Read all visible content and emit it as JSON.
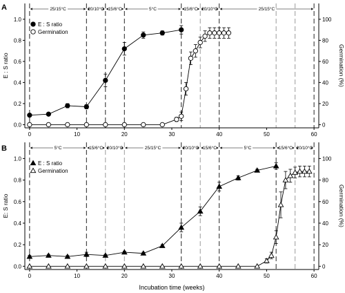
{
  "figure": {
    "xlabel": "Incubation time (weeks)",
    "colors": {
      "axis": "#000000",
      "marker_open": "#ffffff",
      "marker_filled": "#000000",
      "dashed": "#888888"
    }
  },
  "chart_data": [
    {
      "panel": "A",
      "type": "line",
      "xlim": [
        -1,
        61
      ],
      "ylim_left": [
        -0.03,
        1.15
      ],
      "ylim_right": [
        -3,
        115
      ],
      "ylabel_left": "E : S ratio",
      "ylabel_right": "Germination (%)",
      "xticks": [
        0,
        10,
        20,
        30,
        40,
        50,
        60
      ],
      "yticks_left": [
        0.0,
        0.2,
        0.4,
        0.6,
        0.8,
        1.0
      ],
      "yticks_right": [
        0,
        20,
        40,
        60,
        80,
        100
      ],
      "vlines_dashed_dark": [
        0,
        12,
        16,
        20,
        32,
        40,
        60
      ],
      "vlines_dashed_light": [
        36,
        52,
        56
      ],
      "temperature_labels": [
        {
          "text": "25/15°C",
          "from": 0,
          "to": 12
        },
        {
          "text": "20/10°C",
          "from": 12,
          "to": 16
        },
        {
          "text": "15/6°C",
          "from": 16,
          "to": 20
        },
        {
          "text": "5°C",
          "from": 20,
          "to": 32
        },
        {
          "text": "15/6°C",
          "from": 32,
          "to": 36
        },
        {
          "text": "20/10°C",
          "from": 36,
          "to": 40
        },
        {
          "text": "25/15°C",
          "from": 40,
          "to": 60
        }
      ],
      "legend_position": "top-left",
      "series": [
        {
          "name": "E : S ratio",
          "axis": "left",
          "marker": "circle-filled",
          "x": [
            0,
            4,
            8,
            12,
            16,
            20,
            24,
            28,
            32
          ],
          "y": [
            0.09,
            0.1,
            0.18,
            0.17,
            0.42,
            0.72,
            0.85,
            0.87,
            0.9
          ],
          "err": [
            0.01,
            0.01,
            0.02,
            0.02,
            0.06,
            0.06,
            0.03,
            0.02,
            0.04
          ]
        },
        {
          "name": "Germination",
          "axis": "right",
          "marker": "circle-open",
          "x": [
            0,
            4,
            8,
            12,
            16,
            20,
            24,
            28,
            31,
            32,
            33,
            34,
            35,
            36,
            37,
            38,
            39,
            40,
            41,
            42
          ],
          "y": [
            0,
            0,
            0,
            0,
            0,
            0,
            0,
            0,
            5,
            8,
            34,
            63,
            70,
            78,
            84,
            87,
            87,
            87,
            87,
            87
          ],
          "err": [
            0,
            0,
            0,
            0,
            0,
            0,
            0,
            0,
            2,
            4,
            6,
            6,
            6,
            5,
            5,
            5,
            5,
            5,
            5,
            5
          ]
        }
      ]
    },
    {
      "panel": "B",
      "type": "line",
      "xlim": [
        -1,
        61
      ],
      "ylim_left": [
        -0.03,
        1.15
      ],
      "ylim_right": [
        -3,
        115
      ],
      "ylabel_left": "E: S ratio",
      "ylabel_right": "Germination (%)",
      "xticks": [
        0,
        10,
        20,
        30,
        40,
        50,
        60
      ],
      "yticks_left": [
        0.0,
        0.2,
        0.4,
        0.6,
        0.8,
        1.0
      ],
      "yticks_right": [
        0,
        20,
        40,
        60,
        80,
        100
      ],
      "vlines_dashed_dark": [
        0,
        12,
        32,
        40,
        52,
        60
      ],
      "vlines_dashed_light": [
        16,
        20,
        36,
        56
      ],
      "temperature_labels": [
        {
          "text": "5°C",
          "from": 0,
          "to": 12
        },
        {
          "text": "15/6°C",
          "from": 12,
          "to": 16
        },
        {
          "text": "20/10°C",
          "from": 16,
          "to": 20
        },
        {
          "text": "25/15°C",
          "from": 20,
          "to": 32
        },
        {
          "text": "20/10°C",
          "from": 32,
          "to": 36
        },
        {
          "text": "15/6°C",
          "from": 36,
          "to": 40
        },
        {
          "text": "5°C",
          "from": 40,
          "to": 52
        },
        {
          "text": "15/6°C",
          "from": 52,
          "to": 56
        },
        {
          "text": "20/10°C",
          "from": 56,
          "to": 60
        }
      ],
      "legend_position": "top-left",
      "series": [
        {
          "name": "E : S ratio",
          "axis": "left",
          "marker": "triangle-filled",
          "x": [
            0,
            4,
            8,
            12,
            16,
            20,
            24,
            28,
            32,
            36,
            40,
            44,
            48,
            52
          ],
          "y": [
            0.09,
            0.1,
            0.09,
            0.11,
            0.1,
            0.13,
            0.12,
            0.19,
            0.36,
            0.51,
            0.74,
            0.82,
            0.89,
            0.93
          ],
          "err": [
            0.01,
            0.01,
            0.01,
            0.02,
            0.01,
            0.01,
            0.01,
            0.01,
            0.04,
            0.04,
            0.04,
            0.02,
            0.01,
            0.03
          ]
        },
        {
          "name": "Germination",
          "axis": "right",
          "marker": "triangle-open",
          "x": [
            0,
            4,
            8,
            12,
            16,
            20,
            24,
            28,
            32,
            36,
            40,
            44,
            48,
            50,
            51,
            52,
            53,
            54,
            55,
            56,
            57,
            58,
            59
          ],
          "y": [
            0,
            0,
            0,
            0,
            0,
            0,
            0,
            0,
            0,
            0,
            0,
            0,
            0,
            5,
            10,
            27,
            57,
            80,
            84,
            87,
            88,
            88,
            88
          ],
          "err": [
            0,
            0,
            0,
            0,
            0,
            0,
            0,
            0,
            0,
            0,
            0,
            0,
            0,
            2,
            3,
            6,
            12,
            8,
            6,
            5,
            5,
            5,
            5
          ]
        }
      ]
    }
  ]
}
